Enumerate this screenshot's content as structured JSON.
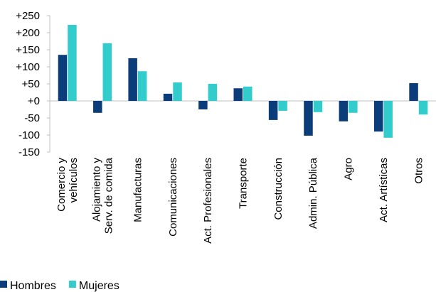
{
  "chart_data": {
    "type": "bar",
    "categories": [
      "Comercio y\nvehículos",
      "Alojamiento y\nServ. de comida",
      "Manufacturas",
      "Comunicaciones",
      "Act. Profesionales",
      "Transporte",
      "Construcción",
      "Admin. Pública",
      "Agro",
      "Act. Artísticas",
      "Otros"
    ],
    "series": [
      {
        "name": "Hombres",
        "color": "#0a3d79",
        "values": [
          135,
          -35,
          125,
          21,
          -25,
          37,
          -56,
          -102,
          -60,
          -90,
          52
        ]
      },
      {
        "name": "Mujeres",
        "color": "#33cccc",
        "values": [
          223,
          169,
          87,
          54,
          50,
          42,
          -29,
          -33,
          -35,
          -108,
          -40
        ]
      }
    ],
    "ylim": [
      -150,
      250
    ],
    "yticks": [
      {
        "value": 250,
        "label": "+250"
      },
      {
        "value": 200,
        "label": "+200"
      },
      {
        "value": 150,
        "label": "+150"
      },
      {
        "value": 100,
        "label": "+100"
      },
      {
        "value": 50,
        "label": "+50"
      },
      {
        "value": 0,
        "label": "+0"
      },
      -50,
      -100,
      -150
    ],
    "legend": "bottom-left"
  }
}
